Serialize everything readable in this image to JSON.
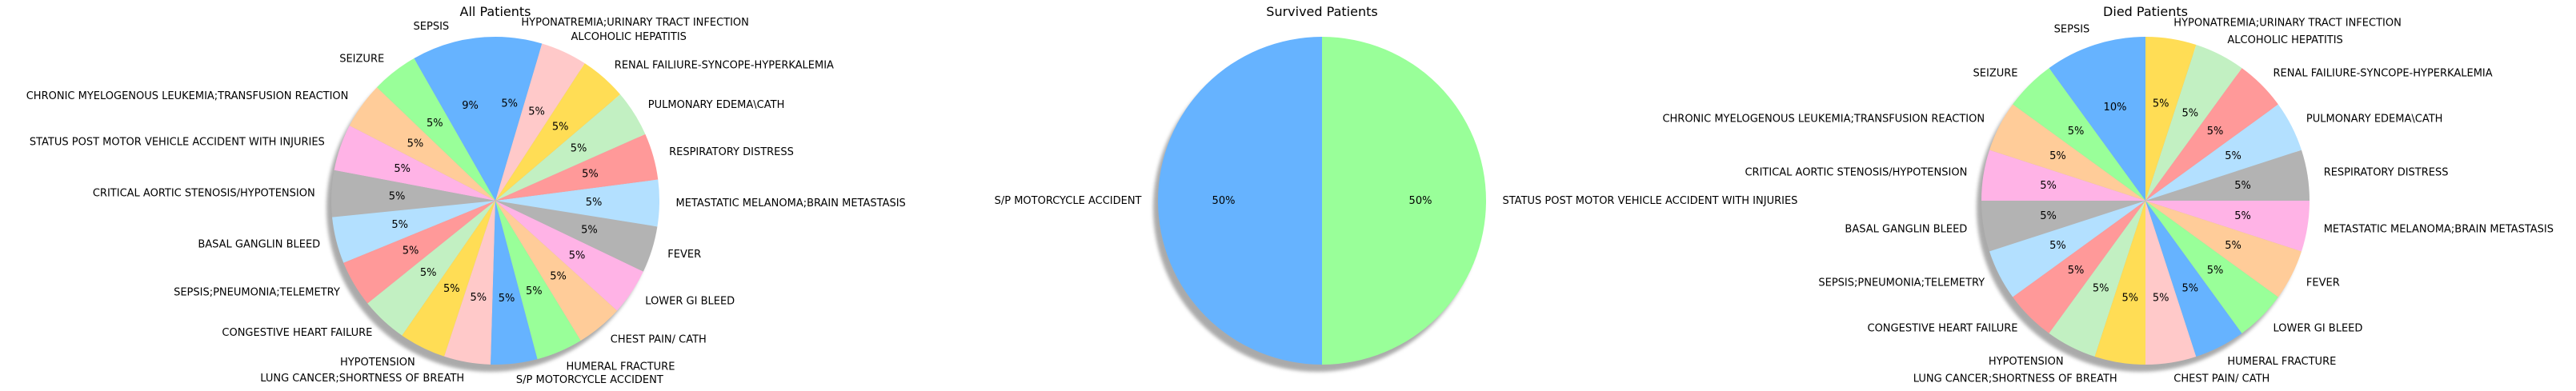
{
  "palette": [
    "#66b3ff",
    "#99ff99",
    "#ffcc99",
    "#ffb3e6",
    "#b3b3b3",
    "#b3e0ff",
    "#ff9999",
    "#c2f0c2",
    "#ffdd55",
    "#ffc9c9"
  ],
  "chart_data": [
    {
      "type": "pie",
      "title": "All Patients",
      "start_angle": 90,
      "direction": "counterclockwise",
      "shadow": true,
      "slices": [
        {
          "label": "SEPSIS",
          "value": 9,
          "pct": "9%"
        },
        {
          "label": "SEIZURE",
          "value": 5,
          "pct": "5%"
        },
        {
          "label": "CHRONIC MYELOGENOUS LEUKEMIA;TRANSFUSION REACTION",
          "value": 5,
          "pct": "5%"
        },
        {
          "label": "STATUS POST MOTOR VEHICLE ACCIDENT WITH INJURIES",
          "value": 5,
          "pct": "5%"
        },
        {
          "label": "CRITICAL AORTIC STENOSIS/HYPOTENSION",
          "value": 5,
          "pct": "5%"
        },
        {
          "label": "BASAL GANGLIN BLEED",
          "value": 5,
          "pct": "5%"
        },
        {
          "label": "SEPSIS;PNEUMONIA;TELEMETRY",
          "value": 5,
          "pct": "5%"
        },
        {
          "label": "CONGESTIVE HEART FAILURE",
          "value": 5,
          "pct": "5%"
        },
        {
          "label": "HYPOTENSION",
          "value": 5,
          "pct": "5%"
        },
        {
          "label": "LUNG CANCER;SHORTNESS OF BREATH",
          "value": 5,
          "pct": "5%"
        },
        {
          "label": "S/P MOTORCYCLE ACCIDENT",
          "value": 5,
          "pct": "5%"
        },
        {
          "label": "HUMERAL FRACTURE",
          "value": 5,
          "pct": "5%"
        },
        {
          "label": "CHEST PAIN/ CATH",
          "value": 5,
          "pct": "5%"
        },
        {
          "label": "LOWER GI BLEED",
          "value": 5,
          "pct": "5%"
        },
        {
          "label": "FEVER",
          "value": 5,
          "pct": "5%"
        },
        {
          "label": "METASTATIC MELANOMA;BRAIN METASTASIS",
          "value": 5,
          "pct": "5%"
        },
        {
          "label": "RESPIRATORY DISTRESS",
          "value": 5,
          "pct": "5%"
        },
        {
          "label": "PULMONARY EDEMA\\CATH",
          "value": 5,
          "pct": "5%"
        },
        {
          "label": "RENAL FAILIURE-SYNCOPE-HYPERKALEMIA",
          "value": 5,
          "pct": "5%"
        },
        {
          "label": "ALCOHOLIC HEPATITIS",
          "value": 5,
          "pct": "5%"
        },
        {
          "label": "HYPONATREMIA;URINARY TRACT INFECTION",
          "value": 5,
          "pct": "5%"
        }
      ]
    },
    {
      "type": "pie",
      "title": "Survived Patients",
      "start_angle": 90,
      "direction": "counterclockwise",
      "shadow": true,
      "slices": [
        {
          "label": "S/P MOTORCYCLE ACCIDENT",
          "value": 50,
          "pct": "50%"
        },
        {
          "label": "STATUS POST MOTOR VEHICLE ACCIDENT WITH INJURIES",
          "value": 50,
          "pct": "50%"
        }
      ]
    },
    {
      "type": "pie",
      "title": "Died Patients",
      "start_angle": 90,
      "direction": "counterclockwise",
      "shadow": true,
      "slices": [
        {
          "label": "SEPSIS",
          "value": 10,
          "pct": "10%"
        },
        {
          "label": "SEIZURE",
          "value": 5,
          "pct": "5%"
        },
        {
          "label": "CHRONIC MYELOGENOUS LEUKEMIA;TRANSFUSION REACTION",
          "value": 5,
          "pct": "5%"
        },
        {
          "label": "CRITICAL AORTIC STENOSIS/HYPOTENSION",
          "value": 5,
          "pct": "5%"
        },
        {
          "label": "BASAL GANGLIN BLEED",
          "value": 5,
          "pct": "5%"
        },
        {
          "label": "SEPSIS;PNEUMONIA;TELEMETRY",
          "value": 5,
          "pct": "5%"
        },
        {
          "label": "CONGESTIVE HEART FAILURE",
          "value": 5,
          "pct": "5%"
        },
        {
          "label": "HYPOTENSION",
          "value": 5,
          "pct": "5%"
        },
        {
          "label": "LUNG CANCER;SHORTNESS OF BREATH",
          "value": 5,
          "pct": "5%"
        },
        {
          "label": "CHEST PAIN/ CATH",
          "value": 5,
          "pct": "5%"
        },
        {
          "label": "HUMERAL FRACTURE",
          "value": 5,
          "pct": "5%"
        },
        {
          "label": "LOWER GI BLEED",
          "value": 5,
          "pct": "5%"
        },
        {
          "label": "FEVER",
          "value": 5,
          "pct": "5%"
        },
        {
          "label": "METASTATIC MELANOMA;BRAIN METASTASIS",
          "value": 5,
          "pct": "5%"
        },
        {
          "label": "RESPIRATORY DISTRESS",
          "value": 5,
          "pct": "5%"
        },
        {
          "label": "PULMONARY EDEMA\\CATH",
          "value": 5,
          "pct": "5%"
        },
        {
          "label": "RENAL FAILIURE-SYNCOPE-HYPERKALEMIA",
          "value": 5,
          "pct": "5%"
        },
        {
          "label": "ALCOHOLIC HEPATITIS",
          "value": 5,
          "pct": "5%"
        },
        {
          "label": "HYPONATREMIA;URINARY TRACT INFECTION",
          "value": 5,
          "pct": "5%"
        }
      ]
    }
  ]
}
